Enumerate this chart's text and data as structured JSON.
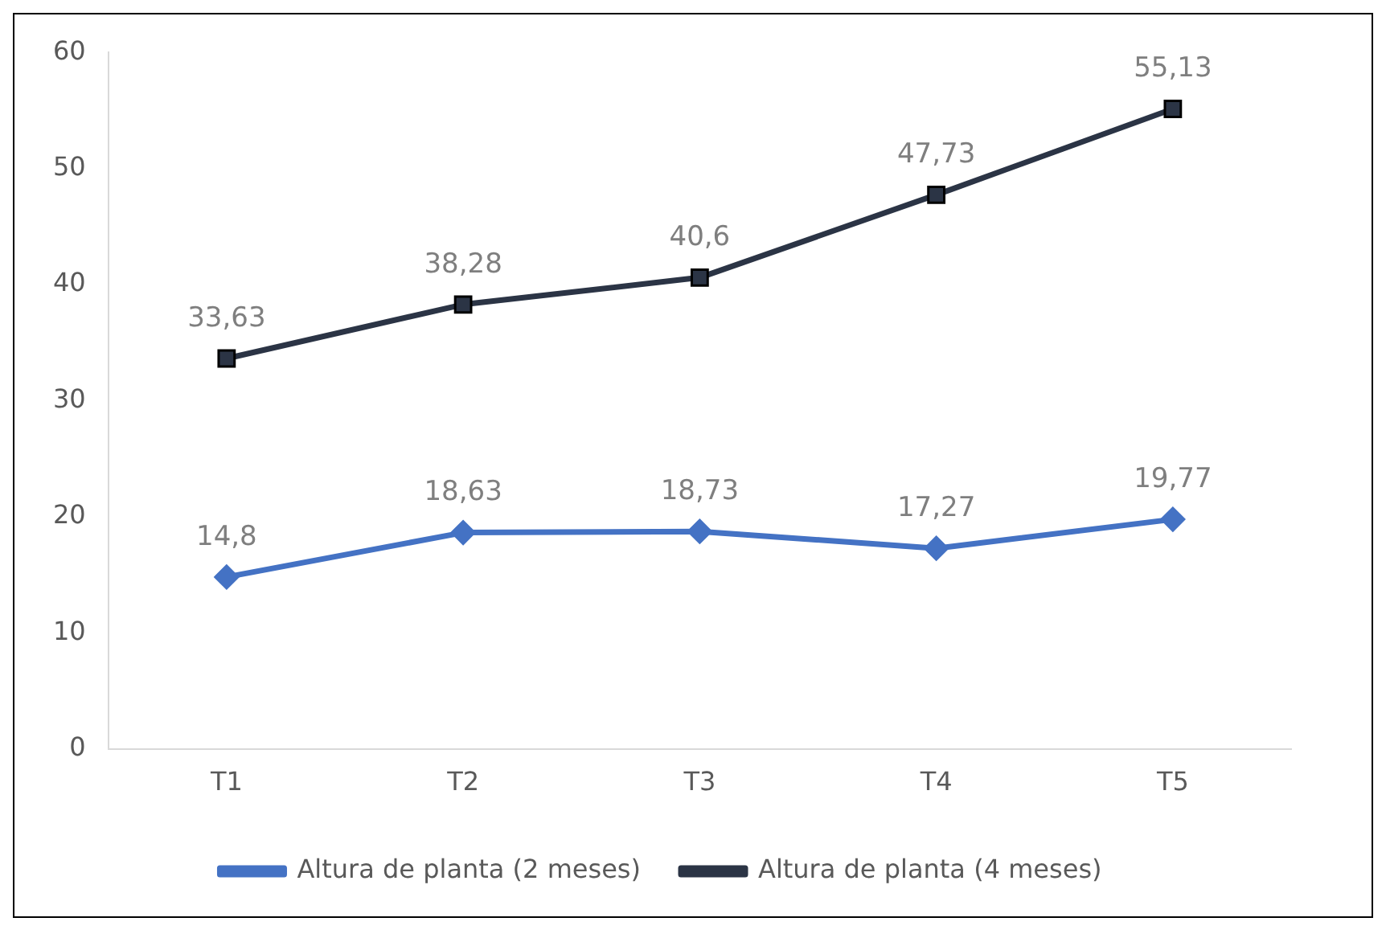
{
  "chart_data": {
    "type": "line",
    "categories": [
      "T1",
      "T2",
      "T3",
      "T4",
      "T5"
    ],
    "series": [
      {
        "name": "Altura de planta (2 meses)",
        "color": "#4472c4",
        "marker": "diamond",
        "values": [
          14.8,
          18.63,
          18.73,
          17.27,
          19.77
        ],
        "value_labels": [
          "14,8",
          "18,63",
          "18,73",
          "17,27",
          "19,77"
        ]
      },
      {
        "name": "Altura de planta (4 meses)",
        "color": "#2b3445",
        "marker": "square",
        "values": [
          33.63,
          38.28,
          40.6,
          47.73,
          55.13
        ],
        "value_labels": [
          "33,63",
          "38,28",
          "40,6",
          "47,73",
          "55,13"
        ]
      }
    ],
    "ylim": [
      0,
      60
    ],
    "yticks": [
      0,
      10,
      20,
      30,
      40,
      50,
      60
    ],
    "grid": false,
    "legend": "bottom"
  }
}
